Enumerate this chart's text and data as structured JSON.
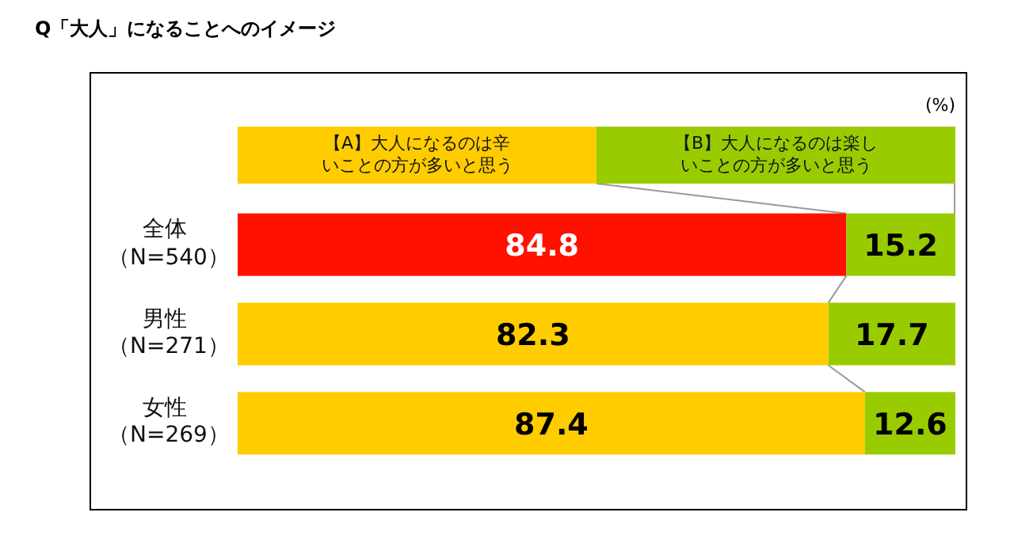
{
  "chart_data": {
    "type": "bar",
    "title": "Q「大人」になることへのイメージ",
    "orientation": "horizontal",
    "stacked": true,
    "categories": [
      "全体（N=540）",
      "男性（N=271）",
      "女性（N=269）"
    ],
    "series": [
      {
        "name": "【A】大人になるのは辛いことの方が多いと思う",
        "color": "#ffcc00",
        "colors": [
          "#ff1100",
          "#ffcc00",
          "#ffcc00"
        ],
        "values": [
          84.8,
          82.3,
          87.4
        ]
      },
      {
        "name": "【B】大人になるのは楽しいことの方が多いと思う",
        "color": "#99cc00",
        "values": [
          15.2,
          17.7,
          12.6
        ]
      }
    ],
    "xlim": [
      0,
      100
    ],
    "tick_labels": "y",
    "data_labels": true,
    "legend": "top",
    "grid": false,
    "annotations": [
      "(%)"
    ]
  }
}
